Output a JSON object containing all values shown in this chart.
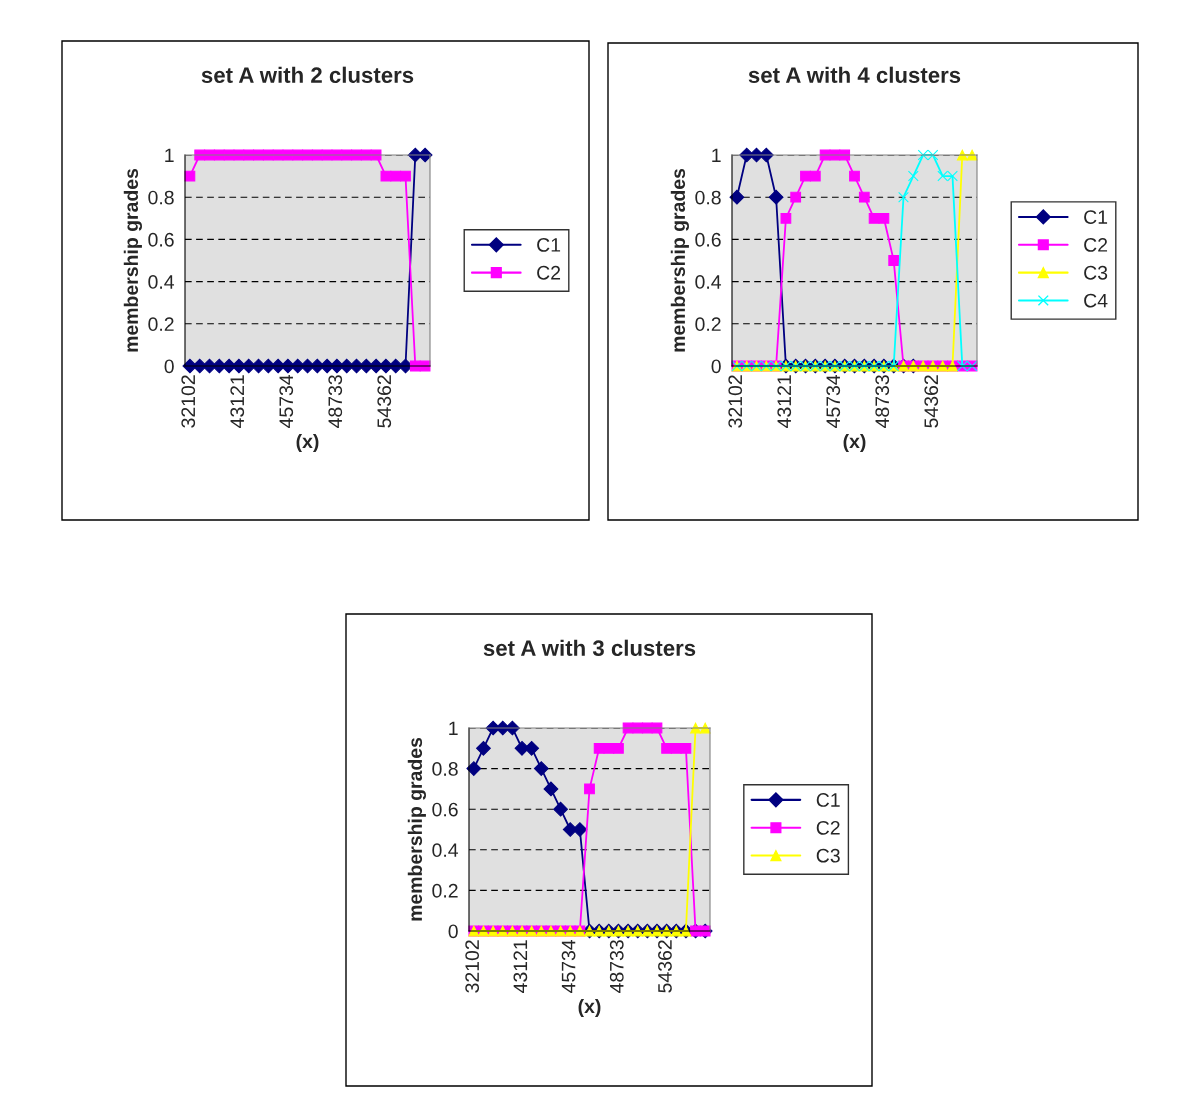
{
  "chart_data": [
    {
      "type": "line",
      "title": "set A with 2 clusters",
      "xlabel": "(x)",
      "ylabel": "membership grades",
      "categories": [
        "32102",
        null,
        null,
        null,
        null,
        "43121",
        null,
        null,
        null,
        null,
        "45734",
        null,
        null,
        null,
        null,
        "48733",
        null,
        null,
        null,
        null,
        "54362",
        null,
        null,
        null,
        null
      ],
      "series": [
        {
          "name": "C1",
          "color": "#000080",
          "marker": "diamond",
          "values": [
            0,
            0,
            0,
            0,
            0,
            0,
            0,
            0,
            0,
            0,
            0,
            0,
            0,
            0,
            0,
            0,
            0,
            0,
            0,
            0,
            0,
            0,
            0,
            1,
            1
          ]
        },
        {
          "name": "C2",
          "color": "#ff00ff",
          "marker": "square",
          "values": [
            0.9,
            1,
            1,
            1,
            1,
            1,
            1,
            1,
            1,
            1,
            1,
            1,
            1,
            1,
            1,
            1,
            1,
            1,
            1,
            1,
            0.9,
            0.9,
            0.9,
            0,
            0
          ]
        }
      ],
      "ylim": [
        0,
        1
      ],
      "yticks": [
        0,
        0.2,
        0.4,
        0.6,
        0.8,
        1
      ],
      "grid": "y",
      "legend": "right",
      "line_style": "solid"
    },
    {
      "type": "line",
      "title": "set A with 4 clusters",
      "xlabel": "(x)",
      "ylabel": "membership grades",
      "categories": [
        "32102",
        null,
        null,
        null,
        null,
        "43121",
        null,
        null,
        null,
        null,
        "45734",
        null,
        null,
        null,
        null,
        "48733",
        null,
        null,
        null,
        null,
        "54362",
        null,
        null,
        null,
        null
      ],
      "series": [
        {
          "name": "C1",
          "color": "#000080",
          "marker": "diamond",
          "values": [
            0.8,
            1,
            1,
            1,
            0.8,
            0,
            0,
            0,
            0,
            0,
            0,
            0,
            0,
            0,
            0,
            0,
            0,
            0,
            0,
            null,
            null,
            null,
            null,
            null,
            null
          ]
        },
        {
          "name": "C2",
          "color": "#ff00ff",
          "marker": "square",
          "values": [
            0,
            0,
            0,
            0,
            0,
            0.7,
            0.8,
            0.9,
            0.9,
            1,
            1,
            1,
            0.9,
            0.8,
            0.7,
            0.7,
            0.5,
            0,
            0,
            0,
            0,
            0,
            0,
            0,
            0
          ]
        },
        {
          "name": "C3",
          "color": "#ffff00",
          "marker": "triangle",
          "values": [
            0,
            0,
            0,
            0,
            0,
            0,
            0,
            0,
            0,
            0,
            0,
            0,
            0,
            0,
            0,
            0,
            0,
            0,
            0,
            0,
            0,
            0,
            0,
            1,
            1
          ]
        },
        {
          "name": "C4",
          "color": "#00ffff",
          "marker": "cross",
          "values": [
            0,
            0,
            0,
            0,
            0,
            0,
            0,
            0,
            0,
            0,
            0,
            0,
            0,
            0,
            0,
            0,
            0,
            0.8,
            0.9,
            1,
            1,
            0.9,
            0.9,
            0,
            0
          ]
        }
      ],
      "ylim": [
        0,
        1
      ],
      "yticks": [
        0,
        0.2,
        0.4,
        0.6,
        0.8,
        1
      ],
      "grid": "y",
      "legend": "right",
      "line_style": "solid"
    },
    {
      "type": "line",
      "title": "set A with 3 clusters",
      "xlabel": "(x)",
      "ylabel": "membership grades",
      "categories": [
        "32102",
        null,
        null,
        null,
        null,
        "43121",
        null,
        null,
        null,
        null,
        "45734",
        null,
        null,
        null,
        null,
        "48733",
        null,
        null,
        null,
        null,
        "54362",
        null,
        null,
        null,
        null
      ],
      "series": [
        {
          "name": "C1",
          "color": "#000080",
          "marker": "diamond",
          "values": [
            0.8,
            0.9,
            1,
            1,
            1,
            0.9,
            0.9,
            0.8,
            0.7,
            0.6,
            0.5,
            0.5,
            0,
            0,
            0,
            0,
            0,
            0,
            0,
            0,
            0,
            0,
            0,
            0,
            0
          ]
        },
        {
          "name": "C2",
          "color": "#ff00ff",
          "marker": "square",
          "values": [
            0,
            0,
            0,
            0,
            0,
            0,
            0,
            0,
            0,
            0,
            0,
            0,
            0.7,
            0.9,
            0.9,
            0.9,
            1,
            1,
            1,
            1,
            0.9,
            0.9,
            0.9,
            0,
            0
          ]
        },
        {
          "name": "C3",
          "color": "#ffff00",
          "marker": "triangle",
          "values": [
            0,
            0,
            0,
            0,
            0,
            0,
            0,
            0,
            0,
            0,
            0,
            0,
            0,
            0,
            0,
            0,
            0,
            0,
            0,
            0,
            0,
            0,
            0,
            1,
            1
          ]
        }
      ],
      "ylim": [
        0,
        1
      ],
      "yticks": [
        0,
        0.2,
        0.4,
        0.6,
        0.8,
        1
      ],
      "grid": "y",
      "legend": "right",
      "line_style": "solid"
    }
  ]
}
